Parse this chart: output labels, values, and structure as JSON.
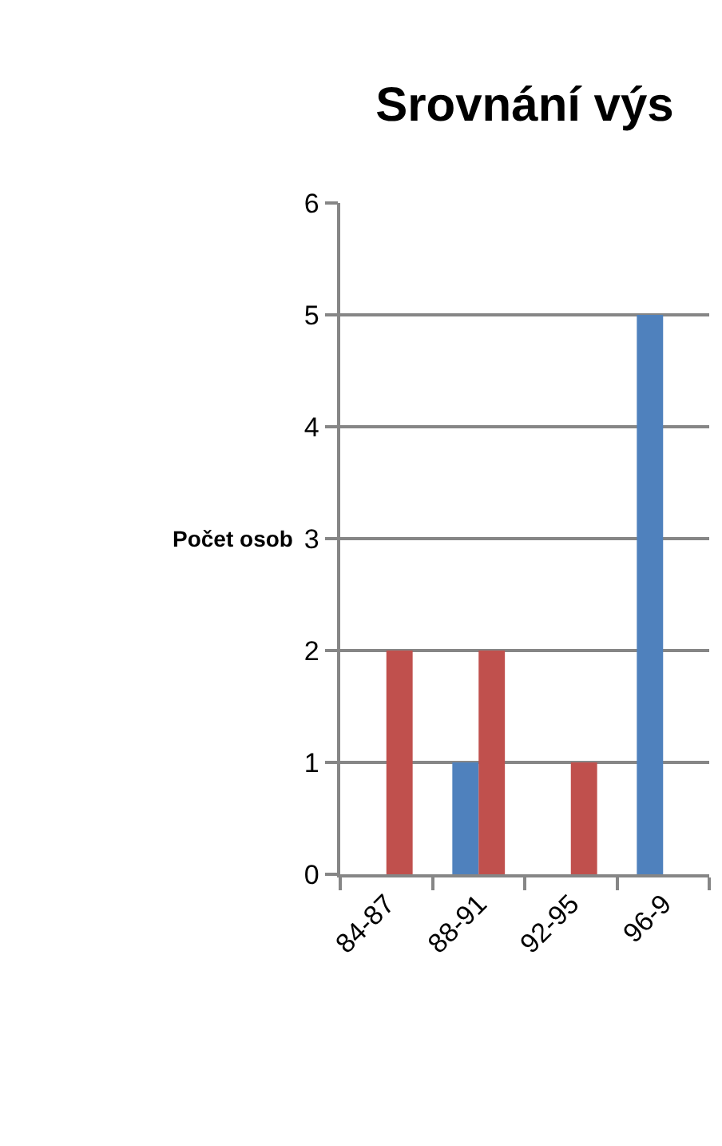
{
  "chart_data": {
    "type": "bar",
    "title": "Srovnání výs",
    "ylabel": "Počet osob",
    "categories": [
      "84-87",
      "88-91",
      "92-95",
      "96-9"
    ],
    "series": [
      {
        "color": "#4f81bd",
        "values": [
          null,
          1,
          null,
          5
        ]
      },
      {
        "color": "#c0504d",
        "values": [
          2,
          2,
          1,
          null
        ]
      }
    ],
    "ylim": [
      0,
      6
    ],
    "yticks": [
      0,
      1,
      2,
      3,
      4,
      5,
      6
    ],
    "grid": "y"
  }
}
